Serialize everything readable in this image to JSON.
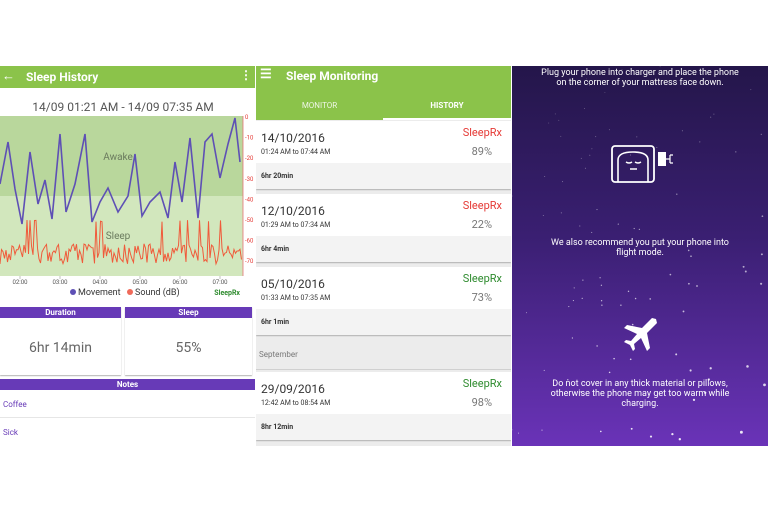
{
  "sleep_history": {
    "title": "Sleep History",
    "date_range": "14/09 01:21 AM - 14/09 07:35 AM",
    "zone_labels": [
      "Awake",
      "Sleep"
    ],
    "x_ticks": [
      "02:00",
      "03:00",
      "04:00",
      "05:00",
      "06:00",
      "07:00"
    ],
    "right_ticks": [
      "0",
      "-10",
      "-20",
      "-30",
      "-40",
      "-50",
      "-60",
      "-70"
    ],
    "legend": [
      "Movement",
      "Sound (dB)"
    ],
    "brand": "SleepRx",
    "stats": [
      {
        "label": "Duration",
        "value": "6hr 14min"
      },
      {
        "label": "Sleep",
        "value": "55%"
      }
    ],
    "notes_title": "Notes",
    "notes": [
      "Coffee",
      "Sick"
    ]
  },
  "sleep_monitoring": {
    "title": "Sleep Monitoring",
    "tabs": [
      "MONITOR",
      "HISTORY"
    ],
    "entries": [
      {
        "date": "14/10/2016",
        "time": "01:24 AM to 07:44 AM",
        "brand": "SleepRx",
        "brand_color": "#e53935",
        "score": "89%",
        "duration": "6hr 20min"
      },
      {
        "date": "12/10/2016",
        "time": "01:29 AM to 07:34 AM",
        "brand": "SleepRx",
        "brand_color": "#e53935",
        "score": "22%",
        "duration": "6hr 4min"
      },
      {
        "date": "05/10/2016",
        "time": "01:33 AM to 07:35 AM",
        "brand": "SleepRx",
        "brand_color": "#2e8b2e",
        "score": "73%",
        "duration": "6hr 1min"
      }
    ],
    "section": "September",
    "section_entries": [
      {
        "date": "29/09/2016",
        "time": "12:42 AM to 08:54 AM",
        "brand": "SleepRx",
        "brand_color": "#2e8b2e",
        "score": "98%",
        "duration": "8hr 12min"
      }
    ]
  },
  "instructions": {
    "tips": [
      "Plug your phone into charger and place the phone on the corner of your mattress face down.",
      "We also recommend you put your phone into flight mode.",
      "Do not cover in any thick material or pillows, otherwise the phone may get too warm while charging."
    ]
  }
}
